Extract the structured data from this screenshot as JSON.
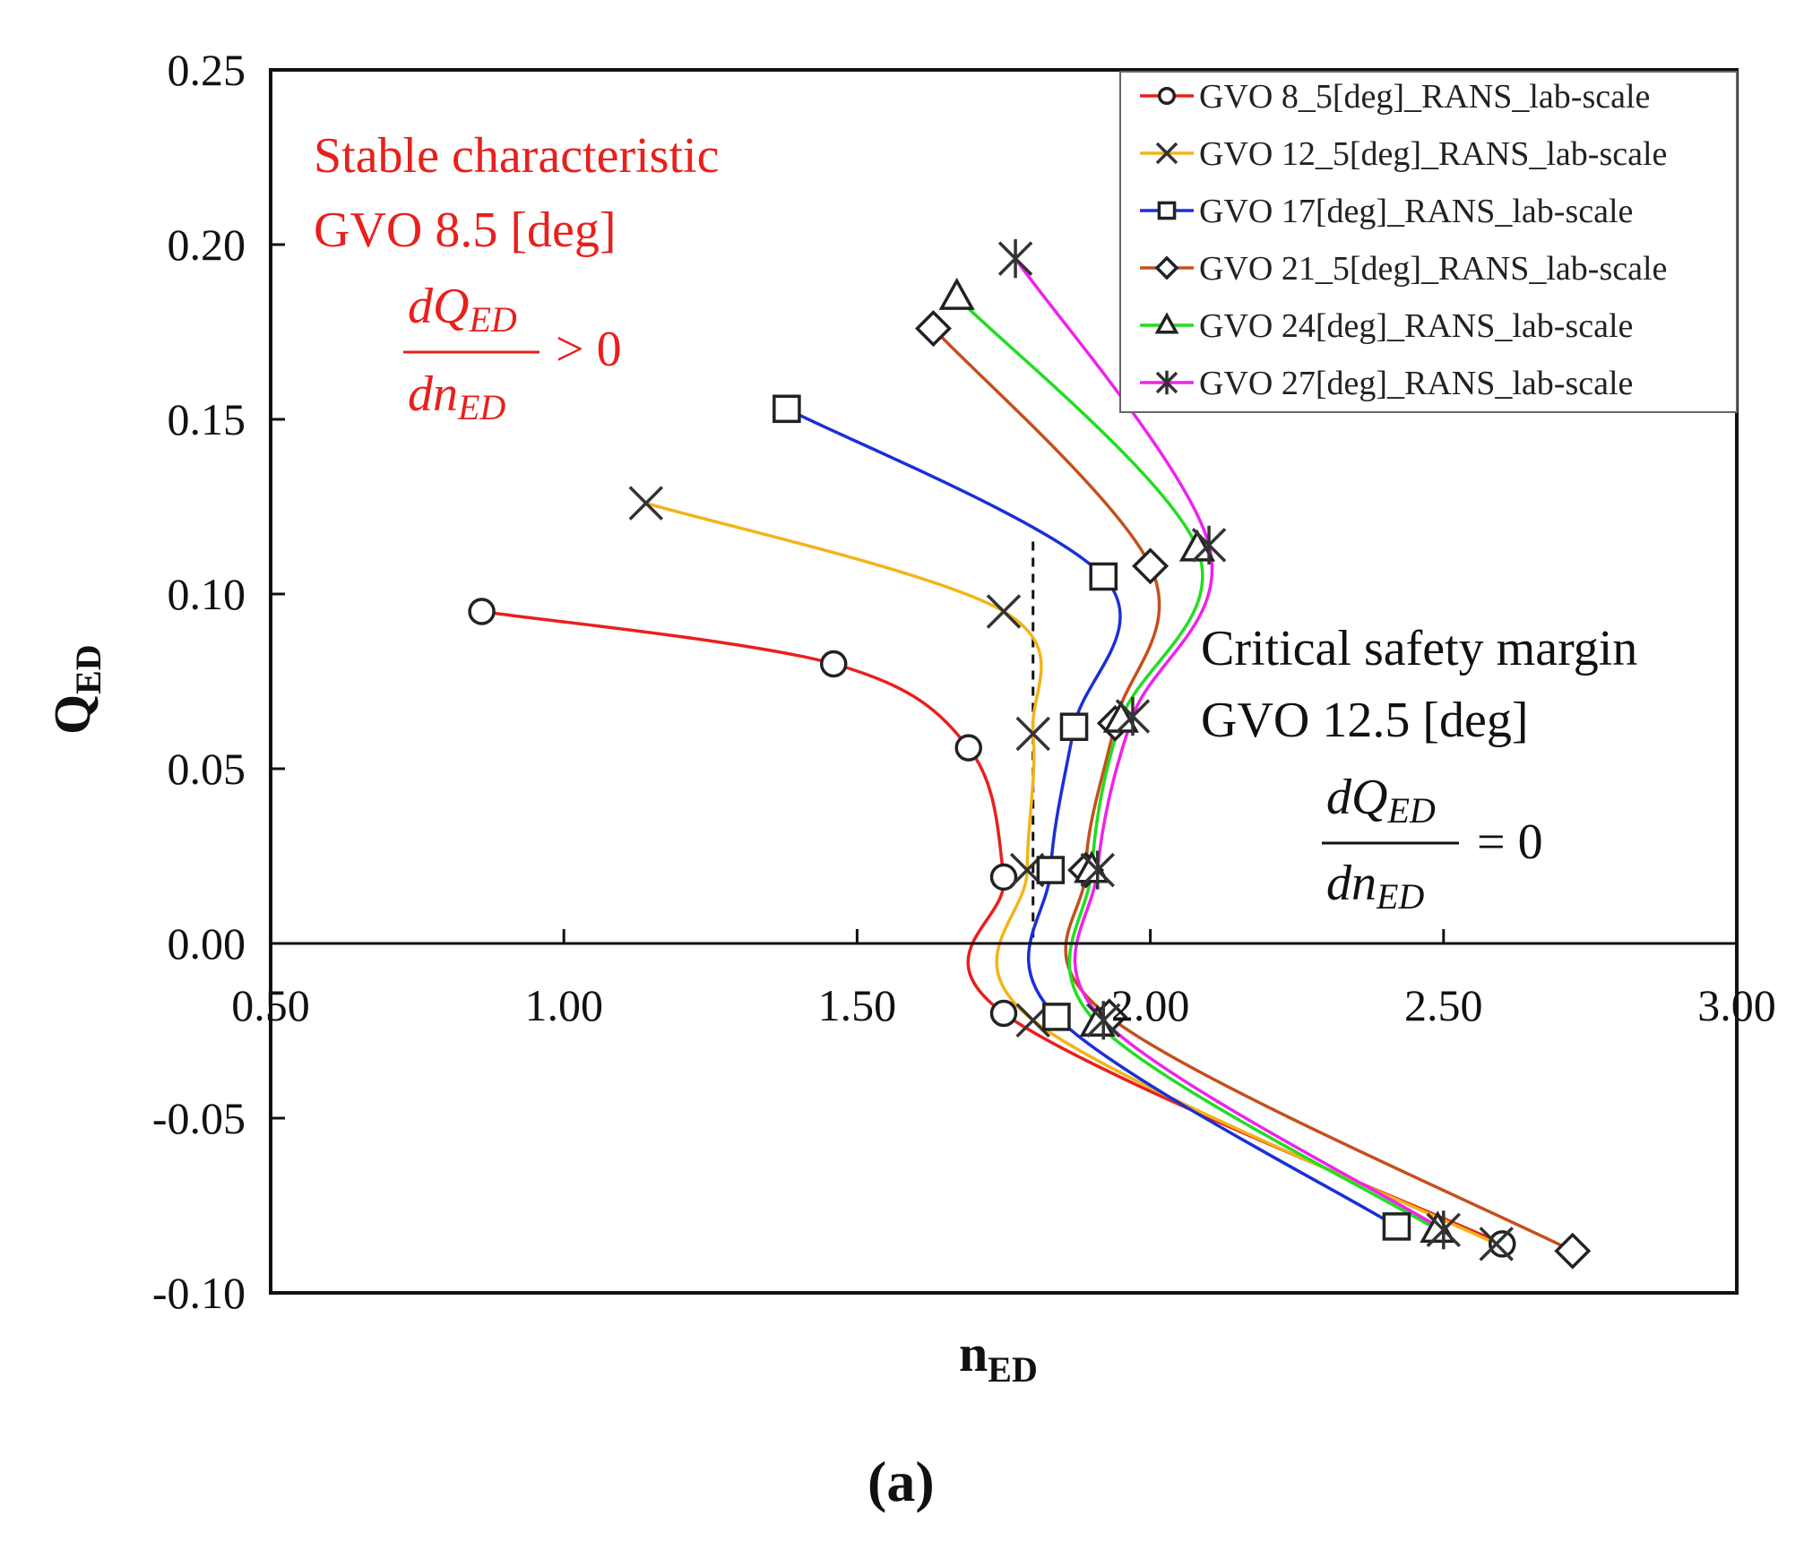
{
  "chart_data": {
    "type": "line",
    "xlabel": "n",
    "xlabel_sub": "ED",
    "ylabel": "Q",
    "ylabel_sub": "ED",
    "xlim": [
      0.5,
      3.0
    ],
    "ylim": [
      -0.1,
      0.25
    ],
    "xticks": [
      "0.50",
      "1.00",
      "1.50",
      "2.00",
      "2.50",
      "3.00"
    ],
    "yticks": [
      "0.25",
      "0.20",
      "0.15",
      "0.10",
      "0.05",
      "0.00",
      "-0.05",
      "-0.10"
    ],
    "grid": false,
    "legend_position": "top-right",
    "series": [
      {
        "name": "GVO 8_5[deg]_RANS_lab-scale",
        "color": "#e8201c",
        "marker": "circle",
        "points": [
          [
            0.86,
            0.095
          ],
          [
            1.46,
            0.08
          ],
          [
            1.69,
            0.056
          ],
          [
            1.75,
            0.019
          ],
          [
            1.75,
            -0.02
          ],
          [
            2.6,
            -0.086
          ]
        ]
      },
      {
        "name": "GVO 12_5[deg]_RANS_lab-scale",
        "color": "#f2b418",
        "marker": "x",
        "points": [
          [
            1.14,
            0.126
          ],
          [
            1.75,
            0.095
          ],
          [
            1.8,
            0.06
          ],
          [
            1.79,
            0.021
          ],
          [
            1.8,
            -0.022
          ],
          [
            2.59,
            -0.086
          ]
        ]
      },
      {
        "name": "GVO 17[deg]_RANS_lab-scale",
        "color": "#1b2fd6",
        "marker": "square",
        "points": [
          [
            1.38,
            0.153
          ],
          [
            1.92,
            0.105
          ],
          [
            1.87,
            0.062
          ],
          [
            1.83,
            0.021
          ],
          [
            1.84,
            -0.021
          ],
          [
            2.42,
            -0.081
          ]
        ]
      },
      {
        "name": "GVO 21_5[deg]_RANS_lab-scale",
        "color": "#c4501c",
        "marker": "diamond",
        "points": [
          [
            1.63,
            0.176
          ],
          [
            2.0,
            0.108
          ],
          [
            1.94,
            0.063
          ],
          [
            1.89,
            0.021
          ],
          [
            1.93,
            -0.021
          ],
          [
            2.72,
            -0.088
          ]
        ]
      },
      {
        "name": "GVO 24[deg]_RANS_lab-scale",
        "color": "#22dd22",
        "marker": "triangle",
        "points": [
          [
            1.67,
            0.185
          ],
          [
            2.08,
            0.113
          ],
          [
            1.95,
            0.064
          ],
          [
            1.9,
            0.021
          ],
          [
            1.91,
            -0.023
          ],
          [
            2.49,
            -0.082
          ]
        ]
      },
      {
        "name": "GVO 27[deg]_RANS_lab-scale",
        "color": "#ee22ee",
        "marker": "asterisk",
        "points": [
          [
            1.77,
            0.196
          ],
          [
            2.1,
            0.114
          ],
          [
            1.97,
            0.065
          ],
          [
            1.91,
            0.021
          ],
          [
            1.92,
            -0.022
          ],
          [
            2.5,
            -0.082
          ]
        ]
      }
    ],
    "reference_line": {
      "x": 1.8,
      "y_from": 0.115,
      "y_to": 0.0,
      "style": "dashed"
    },
    "annotations": {
      "stable": {
        "line1": "Stable characteristic",
        "line2": "GVO 8.5 [deg]",
        "frac_num": "dQ",
        "frac_num_sub": "ED",
        "frac_den": "dn",
        "frac_den_sub": "ED",
        "relation": "> 0",
        "color": "#e8201c"
      },
      "critical": {
        "line1": "Critical safety margin",
        "line2": "GVO 12.5 [deg]",
        "frac_num": "dQ",
        "frac_num_sub": "ED",
        "frac_den": "dn",
        "frac_den_sub": "ED",
        "relation": "= 0",
        "color": "#111111"
      }
    },
    "panel_label": "(a)"
  }
}
